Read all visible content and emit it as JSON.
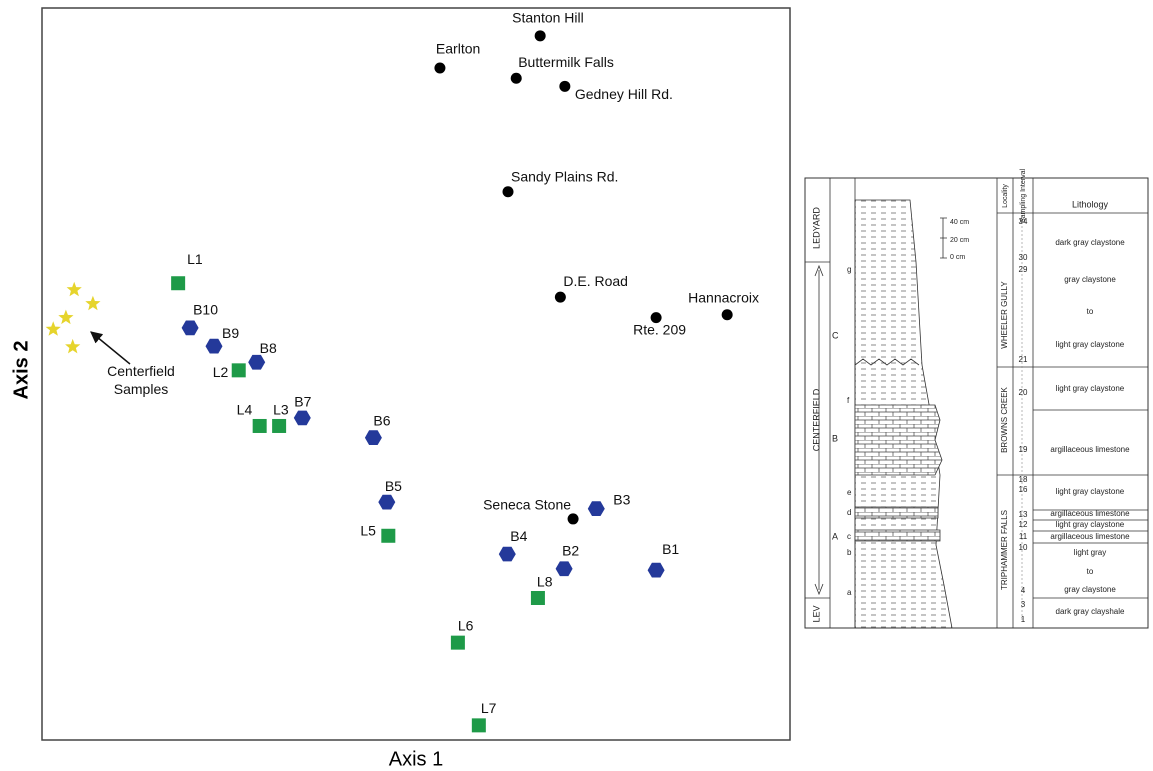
{
  "chart_data": {
    "type": "scatter",
    "xlabel": "Axis 1",
    "ylabel": "Axis 2",
    "xlim": [
      0,
      100
    ],
    "ylim": [
      0,
      100
    ],
    "annotation": "Centerfield Samples",
    "series": [
      {
        "marker": "circle",
        "color": "#000000",
        "x": [
          66.6,
          53.2,
          63.4,
          69.9,
          62.3,
          69.3,
          91.6,
          82.1,
          71.0
        ],
        "y": [
          96.2,
          91.8,
          90.4,
          89.3,
          74.9,
          60.5,
          58.1,
          57.7,
          30.2
        ],
        "labels": [
          "Stanton Hill",
          "Earlton",
          "Buttermilk Falls",
          "Gedney Hill Rd.",
          "Sandy Plains Rd.",
          "D.E. Road",
          "Hannacroix",
          "Rte. 209",
          "Seneca Stone"
        ]
      },
      {
        "marker": "hexagon",
        "color": "#24399a",
        "x": [
          19.8,
          23.0,
          28.7,
          34.8,
          44.3,
          46.1,
          74.1,
          62.2,
          69.8,
          82.1
        ],
        "y": [
          56.3,
          53.8,
          51.6,
          44.0,
          41.3,
          32.5,
          31.6,
          25.4,
          23.4,
          23.2
        ],
        "labels": [
          "B10",
          "B9",
          "B8",
          "B7",
          "B6",
          "B5",
          "B3",
          "B4",
          "B2",
          "B1"
        ]
      },
      {
        "marker": "square",
        "color": "#1e9a48",
        "x": [
          18.2,
          26.3,
          29.1,
          31.7,
          46.3,
          66.3,
          55.6,
          58.4
        ],
        "y": [
          62.4,
          50.5,
          42.9,
          42.9,
          27.9,
          19.4,
          13.3,
          2.0
        ],
        "labels": [
          "L1",
          "L2",
          "L4",
          "L3",
          "L5",
          "L8",
          "L6",
          "L7"
        ]
      },
      {
        "marker": "star",
        "color": "#e6d42c",
        "x": [
          4.3,
          6.8,
          3.2,
          1.5,
          4.1
        ],
        "y": [
          61.5,
          59.6,
          57.7,
          56.1,
          53.7
        ]
      }
    ]
  },
  "figure": {
    "formations": [
      "LEDYARD",
      "CENTERFIELD",
      "LEV"
    ],
    "members": [
      "WHEELER GULLY",
      "BROWNS CREEK",
      "TRIPHAMMER FALLS"
    ],
    "headers": [
      "Locality",
      "Sampling Interval",
      "Lithology"
    ],
    "units": [
      "C",
      "B",
      "A"
    ],
    "localities": [
      "g",
      "f",
      "e",
      "d",
      "c",
      "b",
      "a"
    ],
    "intervals": [
      34,
      30,
      29,
      21,
      20,
      19,
      18,
      16,
      13,
      12,
      11,
      10,
      4,
      3,
      1
    ],
    "scale": [
      "40 cm",
      "20 cm",
      "0 cm"
    ],
    "lithology": [
      "dark gray claystone",
      "gray claystone",
      "to",
      "light gray claystone",
      "light gray claystone",
      "argillaceous limestone",
      "light gray claystone",
      "argillaceous limestone",
      "light gray claystone",
      "argillaceous limestone",
      "light gray",
      "to",
      "gray claystone",
      "dark gray clayshale"
    ]
  }
}
